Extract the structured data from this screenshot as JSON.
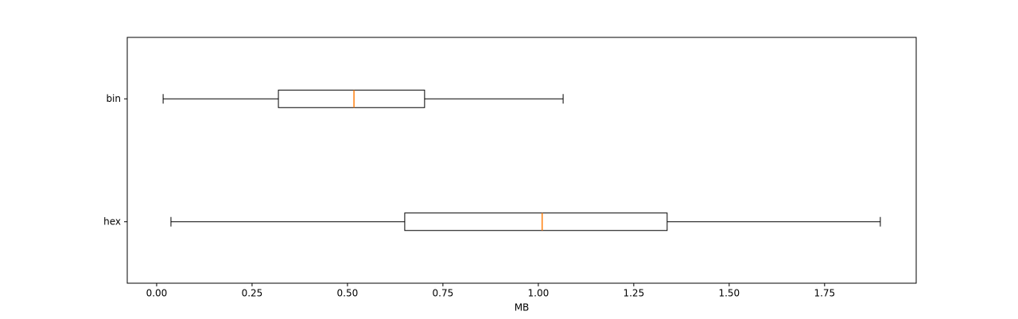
{
  "chart_data": {
    "type": "boxplot",
    "orientation": "horizontal",
    "xlabel": "MB",
    "categories": [
      "hex",
      "bin"
    ],
    "min": [
      0.0375,
      0.017
    ],
    "q1": [
      0.65,
      0.319
    ],
    "median": [
      1.01,
      0.517
    ],
    "q3": [
      1.3375,
      0.702
    ],
    "max": [
      1.896,
      1.065
    ],
    "color": "#000000",
    "median_color": "#ff7f0e",
    "xlim": [
      -0.077,
      1.99
    ],
    "xticks": [
      {
        "value": 0,
        "label": "0.00"
      },
      0.25,
      {
        "value": 0.5,
        "label": "0.50"
      },
      0.75,
      {
        "value": 1,
        "label": "1.00"
      },
      1.25,
      {
        "value": 1.5,
        "label": "1.50"
      },
      1.75
    ],
    "ylim": [
      0.5,
      2.5
    ],
    "grid": false
  }
}
